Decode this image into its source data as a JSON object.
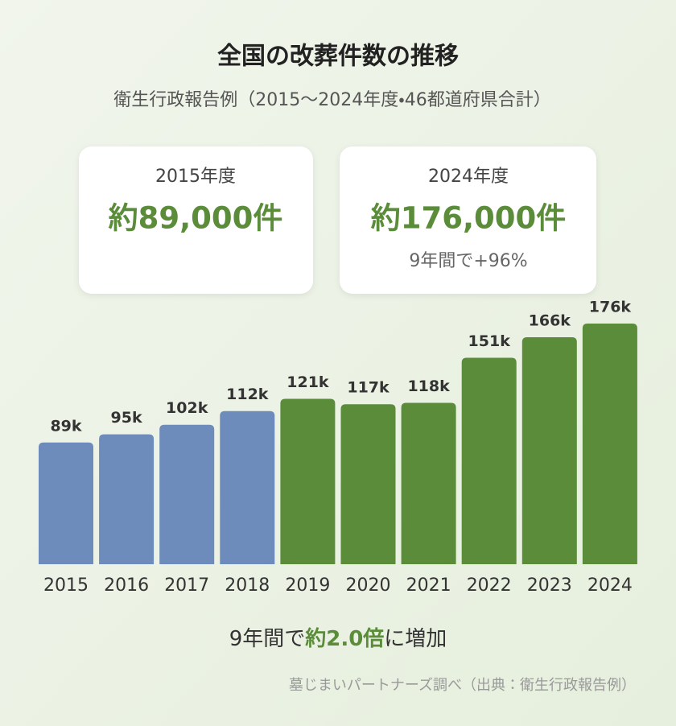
{
  "chart_data": {
    "type": "bar",
    "title": "全国の改葬件数の推移",
    "subtitle": "衛生行政報告例（2015〜2024年度・46都道府県合計）",
    "categories": [
      "2015",
      "2016",
      "2017",
      "2018",
      "2019",
      "2020",
      "2021",
      "2022",
      "2023",
      "2024"
    ],
    "values": [
      89,
      95,
      102,
      112,
      121,
      117,
      118,
      151,
      166,
      176
    ],
    "value_labels": [
      "89k",
      "95k",
      "102k",
      "112k",
      "121k",
      "117k",
      "118k",
      "151k",
      "166k",
      "176k"
    ],
    "colors": [
      "#6d8bbb",
      "#6d8bbb",
      "#6d8bbb",
      "#6d8bbb",
      "#5a8c3a",
      "#5a8c3a",
      "#5a8c3a",
      "#5a8c3a",
      "#5a8c3a",
      "#5a8c3a"
    ]
  },
  "cards": [
    {
      "label": "2015年度",
      "value": "約89,000件"
    },
    {
      "label": "2024年度",
      "value": "約176,000件",
      "note": "9年間で+96%"
    }
  ],
  "summary": {
    "before": "9年間で",
    "highlight": "約2.0倍",
    "after": "に増加"
  },
  "source": "墓じまいパートナーズ調べ（出典：衛生行政報告例）"
}
